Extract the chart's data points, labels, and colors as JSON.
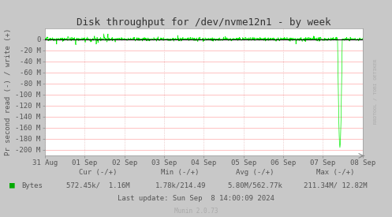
{
  "title": "Disk throughput for /dev/nvme12n1 - by week",
  "ylabel": "Pr second read (-) / write (+)",
  "background_color": "#c8c8c8",
  "plot_bg_color": "#ffffff",
  "right_bg_color": "#d8d8d8",
  "grid_h_color": "#ffaaaa",
  "grid_v_color": "#ddaaaa",
  "line_color": "#00ee00",
  "ylim": [
    -210000000,
    20000000
  ],
  "yticks": [
    0,
    -20000000,
    -40000000,
    -60000000,
    -80000000,
    -100000000,
    -120000000,
    -140000000,
    -160000000,
    -180000000,
    -200000000
  ],
  "ytick_labels": [
    "0",
    "-20 M",
    "-40 M",
    "-60 M",
    "-80 M",
    "-100 M",
    "-120 M",
    "-140 M",
    "-160 M",
    "-180 M",
    "-200 M"
  ],
  "xtick_labels": [
    "31 Aug",
    "01 Sep",
    "02 Sep",
    "03 Sep",
    "04 Sep",
    "05 Sep",
    "06 Sep",
    "07 Sep",
    "08 Sep"
  ],
  "legend_label": "Bytes",
  "legend_color": "#00aa00",
  "stats_row1": "        Cur (-/+)             Min (-/+)          Avg (-/+)             Max (-/+)",
  "stats_row2": "Bytes   572.45k/  1.16M    1.78k/214.49    5.80M/562.77k    211.34M/ 12.82M",
  "footer_update": "Last update: Sun Sep  8 14:00:09 2024",
  "munin_version": "Munin 2.0.73",
  "watermark": "RRDTOOL / TOBI OETIKER",
  "tick_color": "#555555",
  "label_color": "#555555",
  "title_color": "#333333"
}
